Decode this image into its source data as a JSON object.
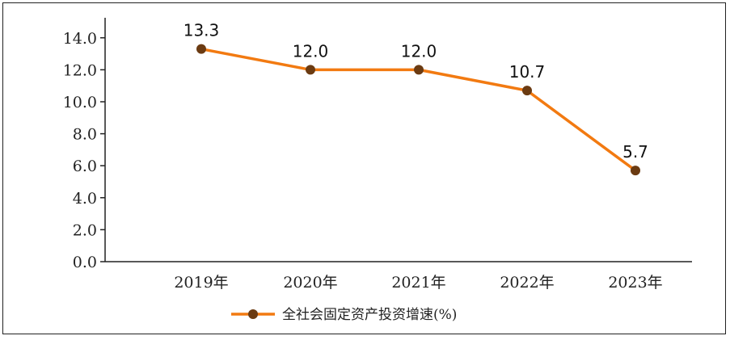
{
  "chart_data": {
    "type": "line",
    "categories": [
      "2019年",
      "2020年",
      "2021年",
      "2022年",
      "2023年"
    ],
    "series": [
      {
        "name": "全社会固定资产投资增速(%)",
        "values": [
          13.3,
          12.0,
          12.0,
          10.7,
          5.7
        ]
      }
    ],
    "data_labels": [
      "13.3",
      "12.0",
      "12.0",
      "10.7",
      "5.7"
    ],
    "y_ticks": [
      "0.0",
      "2.0",
      "4.0",
      "6.0",
      "8.0",
      "10.0",
      "12.0",
      "14.0"
    ],
    "ylim": [
      0,
      15
    ],
    "grid": false,
    "legend_position": "bottom-center",
    "colors": {
      "line": "#f27a11",
      "marker": "#6b3b12"
    }
  }
}
